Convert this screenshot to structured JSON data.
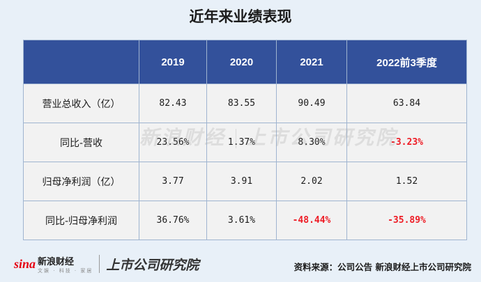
{
  "title": "近年来业绩表现",
  "table": {
    "headers": [
      "",
      "2019",
      "2020",
      "2021",
      "2022前3季度"
    ],
    "rows": [
      {
        "metric": "营业总收入（亿）",
        "values": [
          "82.43",
          "83.55",
          "90.49",
          "63.84"
        ]
      },
      {
        "metric": "同比-营收",
        "values": [
          "23.56%",
          "1.37%",
          "8.30%",
          "-3.23%"
        ]
      },
      {
        "metric": "归母净利润（亿）",
        "values": [
          "3.77",
          "3.91",
          "2.02",
          "1.52"
        ]
      },
      {
        "metric": "同比-归母净利润",
        "values": [
          "36.76%",
          "3.61%",
          "-48.44%",
          "-35.89%"
        ]
      }
    ],
    "negative_color": "#ee1c25",
    "header_color": "#33519b"
  },
  "watermark": {
    "left": "新浪财经",
    "right": "上市公司研究院"
  },
  "footer": {
    "logo_mark": "sina",
    "logo_name": "新浪财经",
    "logo_sub": "文娱 · 科技 · 家居",
    "logo_institute": "上市公司研究院",
    "source": "资料来源：公司公告  新浪财经上市公司研究院"
  }
}
